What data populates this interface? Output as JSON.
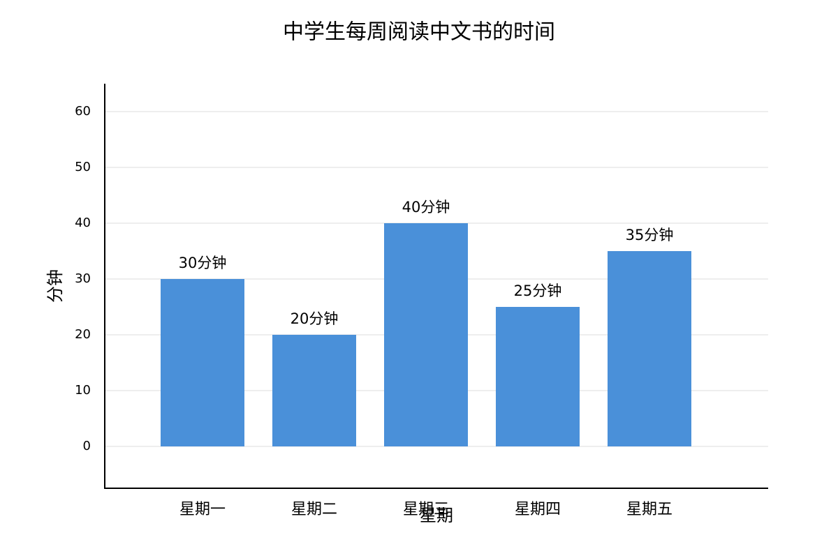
{
  "chart_data": {
    "type": "bar",
    "title": "中学生每周阅读中文书的时间",
    "x_label": "星期",
    "y_label": "分钟",
    "categories": [
      "星期一",
      "星期二",
      "星期三",
      "星期四",
      "星期五"
    ],
    "values": [
      30,
      20,
      40,
      25,
      35
    ],
    "value_labels": [
      "30分钟",
      "20分钟",
      "40分钟",
      "25分钟",
      "35分钟"
    ],
    "color": "#4a90d9",
    "ylim": [
      -7.5,
      65
    ],
    "yticks": [
      0,
      10,
      20,
      30,
      40,
      50,
      60
    ],
    "grid": true
  }
}
